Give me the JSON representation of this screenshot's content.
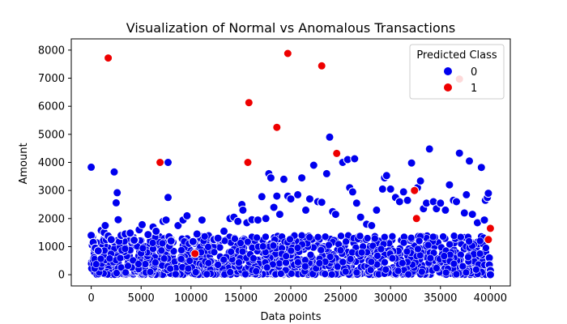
{
  "chart_data": {
    "type": "scatter",
    "title": "Visualization of Normal vs Anomalous Transactions",
    "xlabel": "Data points",
    "ylabel": "Amount",
    "xlim": [
      -2000,
      42000
    ],
    "ylim": [
      -400,
      8400
    ],
    "xticks": [
      "0",
      "5000",
      "10000",
      "15000",
      "20000",
      "25000",
      "30000",
      "35000",
      "40000"
    ],
    "yticks": [
      "0",
      "1000",
      "2000",
      "3000",
      "4000",
      "5000",
      "6000",
      "7000",
      "8000"
    ],
    "legend": {
      "title": "Predicted Class",
      "position": "top-right",
      "entries": [
        {
          "label": "0",
          "color": "#0000ee"
        },
        {
          "label": "1",
          "color": "#ee0000"
        }
      ]
    },
    "grid": false,
    "series": [
      {
        "name": "0",
        "color": "#0000ee",
        "points": [
          [
            0,
            3830
          ],
          [
            0,
            1400
          ],
          [
            200,
            1150
          ],
          [
            400,
            950
          ],
          [
            700,
            850
          ],
          [
            1000,
            1580
          ],
          [
            1300,
            1500
          ],
          [
            1400,
            1750
          ],
          [
            1700,
            1380
          ],
          [
            2000,
            1250
          ],
          [
            2300,
            3660
          ],
          [
            2500,
            2560
          ],
          [
            2600,
            2920
          ],
          [
            2700,
            1960
          ],
          [
            3000,
            1400
          ],
          [
            3400,
            1450
          ],
          [
            3900,
            1480
          ],
          [
            4300,
            1230
          ],
          [
            4800,
            1600
          ],
          [
            5100,
            1780
          ],
          [
            5700,
            1430
          ],
          [
            6200,
            1700
          ],
          [
            6500,
            1550
          ],
          [
            7200,
            1900
          ],
          [
            7500,
            1950
          ],
          [
            7700,
            4000
          ],
          [
            7700,
            2750
          ],
          [
            7800,
            1350
          ],
          [
            8000,
            1200
          ],
          [
            8700,
            1750
          ],
          [
            9200,
            1950
          ],
          [
            9600,
            2100
          ],
          [
            10200,
            1180
          ],
          [
            10600,
            1450
          ],
          [
            11100,
            1950
          ],
          [
            12300,
            1250
          ],
          [
            12700,
            1300
          ],
          [
            13300,
            1550
          ],
          [
            13900,
            2000
          ],
          [
            14300,
            2050
          ],
          [
            14700,
            1900
          ],
          [
            15100,
            2500
          ],
          [
            15200,
            2300
          ],
          [
            15600,
            1850
          ],
          [
            16100,
            1960
          ],
          [
            16700,
            1950
          ],
          [
            17100,
            2780
          ],
          [
            17500,
            2000
          ],
          [
            17800,
            3600
          ],
          [
            18000,
            3450
          ],
          [
            18300,
            2400
          ],
          [
            18600,
            2800
          ],
          [
            18900,
            2150
          ],
          [
            19300,
            3400
          ],
          [
            19700,
            2800
          ],
          [
            20000,
            2700
          ],
          [
            20700,
            2850
          ],
          [
            21100,
            3450
          ],
          [
            21500,
            2300
          ],
          [
            21900,
            2700
          ],
          [
            22300,
            3900
          ],
          [
            22700,
            2600
          ],
          [
            23100,
            2580
          ],
          [
            23600,
            3600
          ],
          [
            23900,
            4900
          ],
          [
            24200,
            2250
          ],
          [
            24500,
            2150
          ],
          [
            25200,
            4000
          ],
          [
            25700,
            4100
          ],
          [
            25900,
            3100
          ],
          [
            26200,
            2950
          ],
          [
            26400,
            4130
          ],
          [
            26600,
            2550
          ],
          [
            27000,
            2050
          ],
          [
            27600,
            1800
          ],
          [
            28100,
            1750
          ],
          [
            28600,
            2300
          ],
          [
            29200,
            3050
          ],
          [
            29400,
            3450
          ],
          [
            29600,
            3530
          ],
          [
            30000,
            3050
          ],
          [
            30500,
            2750
          ],
          [
            30900,
            2600
          ],
          [
            31300,
            2950
          ],
          [
            31700,
            2650
          ],
          [
            32100,
            3980
          ],
          [
            32700,
            3100
          ],
          [
            33000,
            3340
          ],
          [
            33300,
            2350
          ],
          [
            33600,
            2550
          ],
          [
            33900,
            4480
          ],
          [
            34300,
            2600
          ],
          [
            34600,
            2350
          ],
          [
            35000,
            2550
          ],
          [
            35500,
            2300
          ],
          [
            35900,
            3200
          ],
          [
            36300,
            2650
          ],
          [
            36600,
            2600
          ],
          [
            36900,
            4330
          ],
          [
            37400,
            2200
          ],
          [
            37600,
            2850
          ],
          [
            37900,
            4050
          ],
          [
            38200,
            2150
          ],
          [
            38700,
            1850
          ],
          [
            39100,
            3820
          ],
          [
            39400,
            1950
          ],
          [
            39500,
            2650
          ],
          [
            39700,
            2750
          ],
          [
            39800,
            2900
          ],
          [
            39900,
            600
          ],
          [
            39900,
            350
          ],
          [
            40000,
            150
          ],
          [
            40000,
            0
          ]
        ]
      },
      {
        "name": "1",
        "color": "#ee0000",
        "points": [
          [
            1700,
            7720
          ],
          [
            6900,
            4000
          ],
          [
            10400,
            750
          ],
          [
            15700,
            4000
          ],
          [
            15800,
            6130
          ],
          [
            18600,
            5250
          ],
          [
            19700,
            7880
          ],
          [
            23100,
            7440
          ],
          [
            24600,
            4320
          ],
          [
            32400,
            3000
          ],
          [
            32600,
            2000
          ],
          [
            36900,
            6970
          ],
          [
            39800,
            1250
          ],
          [
            40000,
            1650
          ]
        ]
      }
    ],
    "dense_band": {
      "x_range": [
        0,
        40000
      ],
      "y_range": [
        0,
        1400
      ],
      "note": "dense overlapping blue points"
    }
  }
}
